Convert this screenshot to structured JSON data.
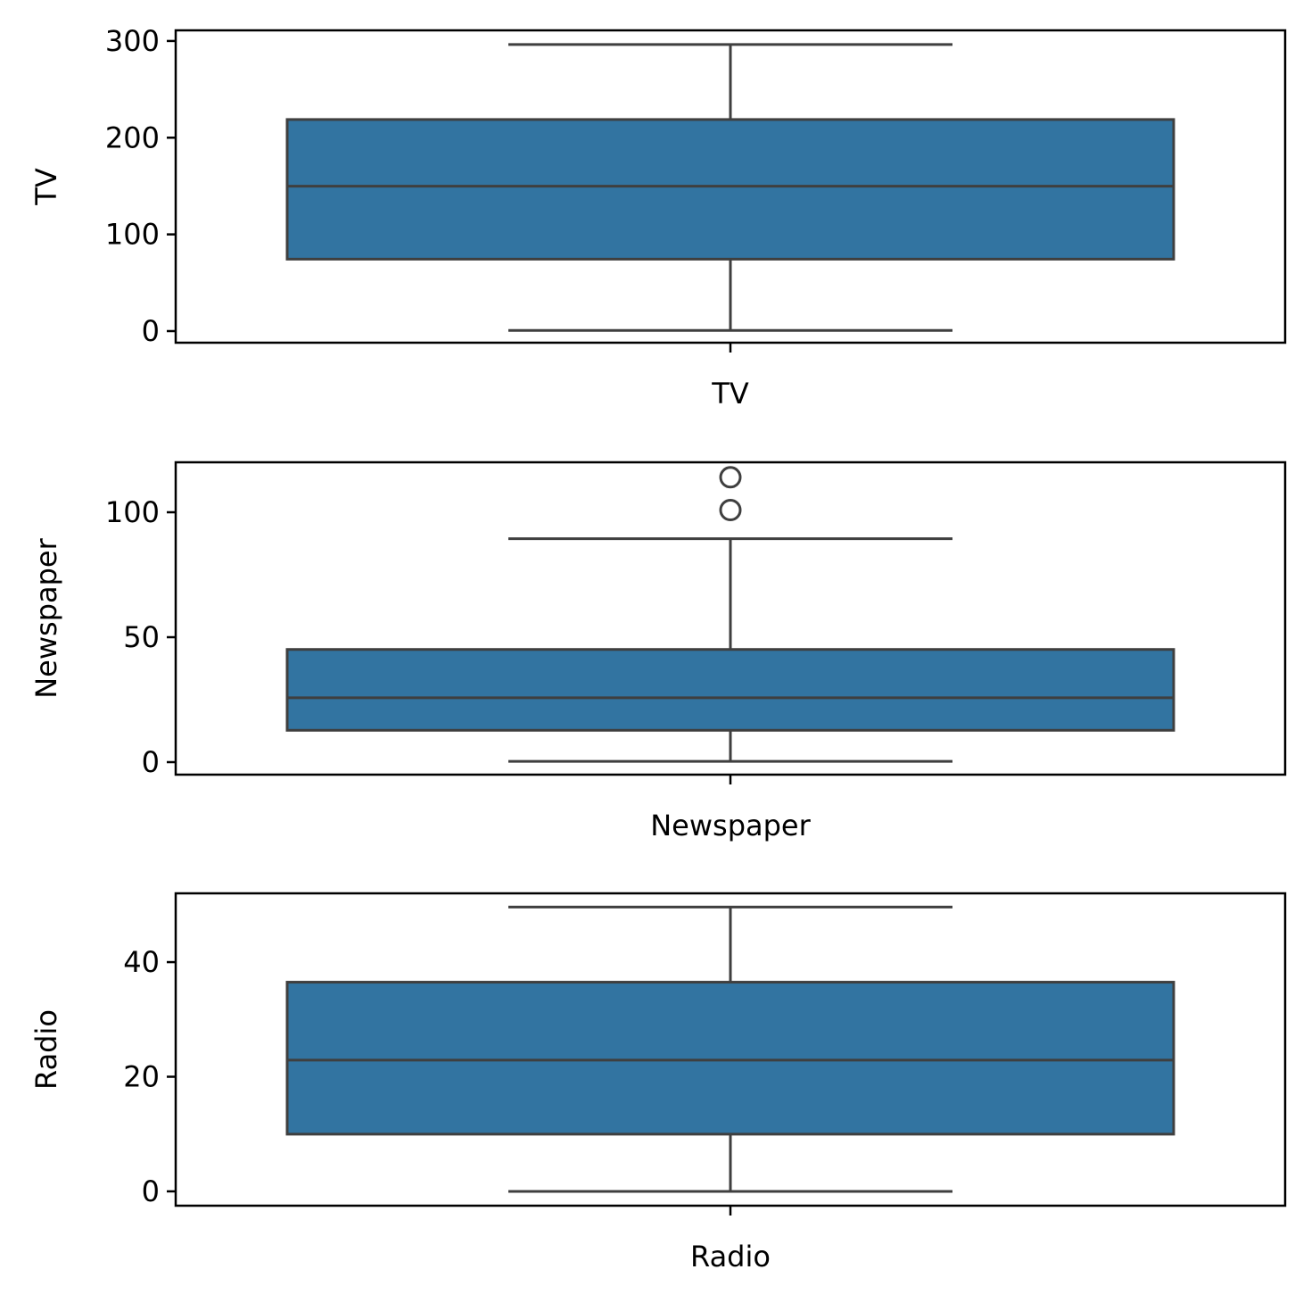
{
  "colors": {
    "box_fill": "#3274a1",
    "line": "#3f3f3f",
    "axis": "#000000",
    "background": "#ffffff"
  },
  "chart_data": [
    {
      "type": "box",
      "xlabel": "TV",
      "ylabel": "TV",
      "ylim": [
        -12,
        311
      ],
      "yticks": [
        0,
        100,
        200,
        300
      ],
      "box": {
        "whisker_low": 0.7,
        "q1": 74.4,
        "median": 149.8,
        "q3": 218.8,
        "whisker_high": 296.4
      },
      "outliers": []
    },
    {
      "type": "box",
      "xlabel": "Newspaper",
      "ylabel": "Newspaper",
      "ylim": [
        -5,
        120
      ],
      "yticks": [
        0,
        50,
        100
      ],
      "box": {
        "whisker_low": 0.3,
        "q1": 12.75,
        "median": 25.75,
        "q3": 45.1,
        "whisker_high": 89.4
      },
      "outliers": [
        100.9,
        114.0
      ]
    },
    {
      "type": "box",
      "xlabel": "Radio",
      "ylabel": "Radio",
      "ylim": [
        -2.5,
        52
      ],
      "yticks": [
        0,
        20,
        40
      ],
      "box": {
        "whisker_low": 0.0,
        "q1": 9.98,
        "median": 22.9,
        "q3": 36.5,
        "whisker_high": 49.6
      },
      "outliers": []
    }
  ]
}
